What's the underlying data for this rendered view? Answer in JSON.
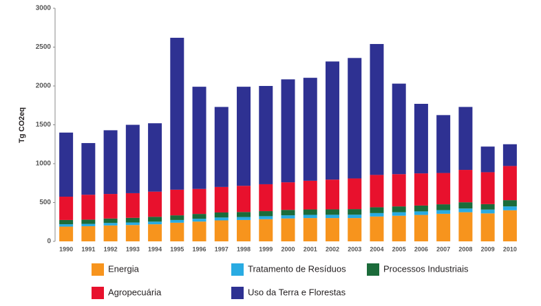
{
  "chart_data": {
    "type": "stacked-bar",
    "ylabel": "Tg CO2eq",
    "categories": [
      "1990",
      "1991",
      "1992",
      "1993",
      "1994",
      "1995",
      "1996",
      "1997",
      "1998",
      "1999",
      "2000",
      "2001",
      "2002",
      "2003",
      "2004",
      "2005",
      "2006",
      "2007",
      "2008",
      "2009",
      "2010"
    ],
    "series": [
      {
        "name": "Energia",
        "color": "#f7941d",
        "values": [
          190,
          195,
          205,
          210,
          220,
          240,
          255,
          270,
          275,
          285,
          295,
          300,
          300,
          300,
          320,
          330,
          340,
          355,
          375,
          360,
          400
        ]
      },
      {
        "name": "Tratamento de Resíduos",
        "color": "#29abe2",
        "values": [
          30,
          30,
          32,
          33,
          34,
          35,
          36,
          37,
          38,
          39,
          40,
          41,
          42,
          43,
          44,
          45,
          46,
          47,
          48,
          49,
          50
        ]
      },
      {
        "name": "Processos Industriais",
        "color": "#1b6b3a",
        "values": [
          55,
          55,
          57,
          60,
          62,
          60,
          62,
          65,
          65,
          65,
          70,
          70,
          70,
          72,
          75,
          75,
          75,
          75,
          80,
          70,
          80
        ]
      },
      {
        "name": "Agropecuária",
        "color": "#e8112d",
        "values": [
          300,
          320,
          316,
          317,
          324,
          330,
          322,
          328,
          337,
          346,
          355,
          369,
          383,
          395,
          416,
          415,
          414,
          403,
          417,
          411,
          440
        ]
      },
      {
        "name": "Uso da Terra e Florestas",
        "color": "#2e3192",
        "values": [
          825,
          665,
          820,
          880,
          880,
          1955,
          1315,
          1030,
          1275,
          1265,
          1325,
          1325,
          1520,
          1550,
          1685,
          1165,
          895,
          745,
          810,
          330,
          280
        ]
      }
    ],
    "ylim": [
      0,
      3000
    ],
    "yticks": [
      0,
      500,
      1000,
      1500,
      2000,
      2500,
      3000
    ],
    "grid": false
  }
}
